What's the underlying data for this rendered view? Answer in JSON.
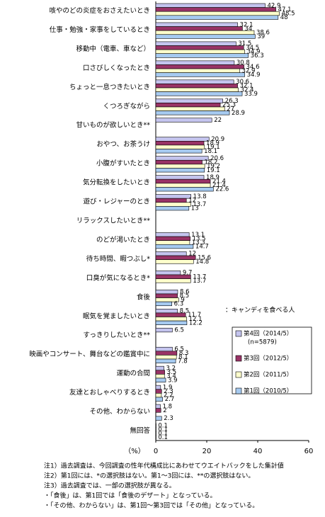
{
  "chart_data": {
    "type": "bar",
    "orientation": "horizontal",
    "categories": [
      "咳やのどの炎症をおさえたいとき",
      "仕事・勉強・家事をしているとき",
      "移動中（電車、車など）",
      "口さびしくなったとき",
      "ちょっと一息つきたいとき",
      "くつろぎながら",
      "甘いものが欲しいとき**",
      "おやつ、お茶うけ",
      "小腹がすいたとき",
      "気分転換をしたいとき",
      "遊び・レジャーのとき",
      "リラックスしたいとき**",
      "のどが渇いたとき",
      "待ち時間、暇つぶし*",
      "口臭が気になるとき*",
      "食後",
      "眠気を覚ましたいとき",
      "すっきりしたいとき**",
      "映画やコンサート、舞台などの鑑賞中に",
      "運動の合間",
      "友達とおしゃべりするとき",
      "その他、わからない",
      "無回答"
    ],
    "series": [
      {
        "name": "第4回（2014/5）",
        "note": "(n=5879)",
        "color": "#c4c4ee",
        "values": [
          42.9,
          32.1,
          31.5,
          30.8,
          30.6,
          26.3,
          22.0,
          20.9,
          20.6,
          18.9,
          13.8,
          null,
          13.1,
          12.0,
          9.7,
          8.6,
          8.5,
          6.5,
          6.5,
          3.2,
          1.9,
          1.8,
          0.1
        ]
      },
      {
        "name": "第3回（2012/5）",
        "color": "#993366",
        "values": [
          47.1,
          34.0,
          34.5,
          34.6,
          32.1,
          25.3,
          null,
          18.9,
          18.2,
          21.4,
          12.0,
          null,
          13.5,
          15.6,
          13.7,
          8.5,
          11.7,
          null,
          8.3,
          3.5,
          2.3,
          2.0,
          0.1
        ]
      },
      {
        "name": "第2回（2011/5）",
        "color": "#ffffcc",
        "values": [
          48.5,
          38.6,
          34.9,
          32.9,
          32.4,
          27.0,
          null,
          19.1,
          19.2,
          21.4,
          13.7,
          null,
          13.3,
          14.8,
          13.7,
          9.0,
          12.1,
          null,
          8.1,
          3.4,
          2.2,
          null,
          0.1
        ]
      },
      {
        "name": "第1回（2010/5）",
        "color": "#a6caf0",
        "values": [
          48.0,
          39.0,
          36.3,
          34.9,
          33.9,
          28.9,
          null,
          18.1,
          19.1,
          22.6,
          13.0,
          null,
          14.7,
          null,
          null,
          6.3,
          12.2,
          null,
          7.8,
          3.9,
          2.7,
          2.3,
          0.1
        ]
      }
    ],
    "xlim": [
      0,
      60
    ],
    "xticks": [
      0,
      20,
      40,
      60
    ],
    "x_label": "（%）",
    "annotation": "：キャンディを食べる人",
    "notes": [
      "注1）過去調査は、今回調査の性年代構成比にあわせてウエイトバックをした集計値",
      "注2）第1回には、*の選択肢はない。第1～3回には、**の選択肢はない。",
      "注3）過去調査では、一部の選択肢が異なる。",
      "・「食後」は、第1回では「食後のデザート」となっている。",
      "・「その他、わからない」は、第1回～第3回では「その他」となっている。"
    ]
  }
}
